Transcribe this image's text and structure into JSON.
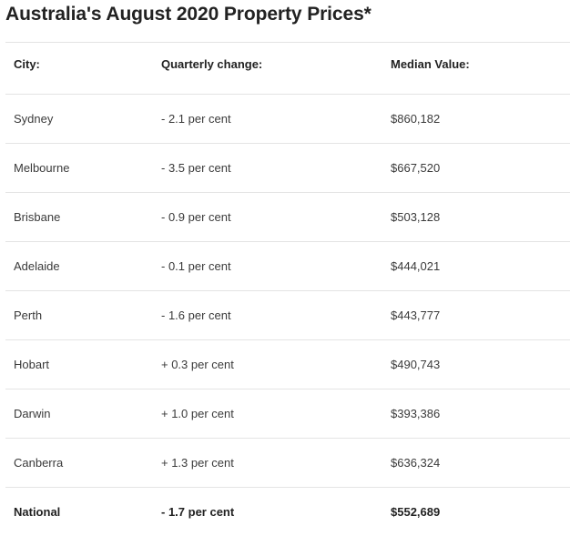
{
  "title": "Australia's August 2020 Property Prices*",
  "table": {
    "headers": [
      "City:",
      "Quarterly change:",
      "Median Value:"
    ],
    "rows": [
      [
        "Sydney",
        "- 2.1 per cent",
        "$860,182"
      ],
      [
        "Melbourne",
        "- 3.5 per cent",
        "$667,520"
      ],
      [
        "Brisbane",
        "- 0.9 per cent",
        "$503,128"
      ],
      [
        "Adelaide",
        "- 0.1 per cent",
        "$444,021"
      ],
      [
        "Perth",
        "- 1.6 per cent",
        "$443,777"
      ],
      [
        "Hobart",
        "+ 0.3 per cent",
        "$490,743"
      ],
      [
        "Darwin",
        "+ 1.0 per cent",
        "$393,386"
      ],
      [
        "Canberra",
        "+ 1.3 per cent",
        "$636,324"
      ]
    ],
    "total": [
      "National",
      "- 1.7 per cent",
      "$552,689"
    ]
  }
}
